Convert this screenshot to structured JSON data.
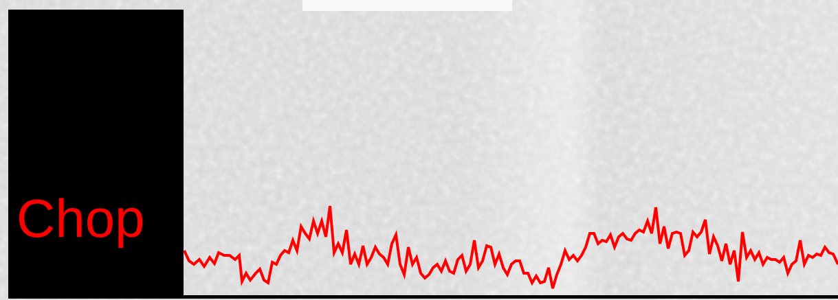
{
  "label": "Chop"
}
